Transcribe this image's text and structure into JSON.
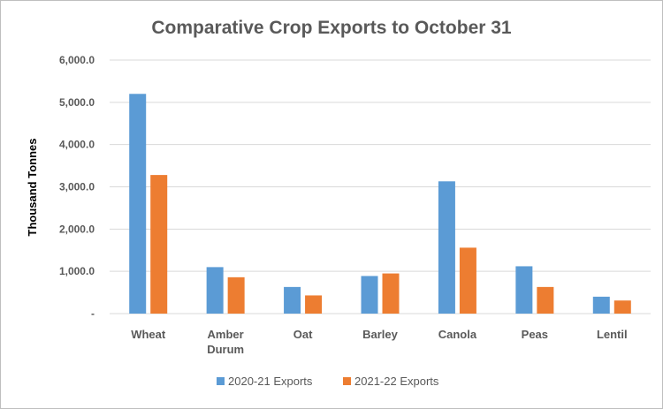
{
  "chart_data": {
    "type": "bar",
    "title": "Comparative Crop Exports to October 31",
    "ylabel": "Thousand Tonnes",
    "xlabel": "",
    "categories": [
      "Wheat",
      "Amber Durum",
      "Oat",
      "Barley",
      "Canola",
      "Peas",
      "Lentil"
    ],
    "series": [
      {
        "name": "2020-21 Exports",
        "color": "#5b9bd5",
        "values": [
          5200,
          1100,
          630,
          890,
          3130,
          1120,
          400
        ]
      },
      {
        "name": "2021-22 Exports",
        "color": "#ed7d31",
        "values": [
          3280,
          860,
          430,
          950,
          1560,
          630,
          310
        ]
      }
    ],
    "ylim": [
      0,
      6000
    ],
    "yticks": [
      0,
      1000,
      2000,
      3000,
      4000,
      5000,
      6000
    ],
    "ytick_labels": [
      "-",
      "1,000.0",
      "2,000.0",
      "3,000.0",
      "4,000.0",
      "5,000.0",
      "6,000.0"
    ],
    "grid": true,
    "legend_position": "bottom"
  }
}
